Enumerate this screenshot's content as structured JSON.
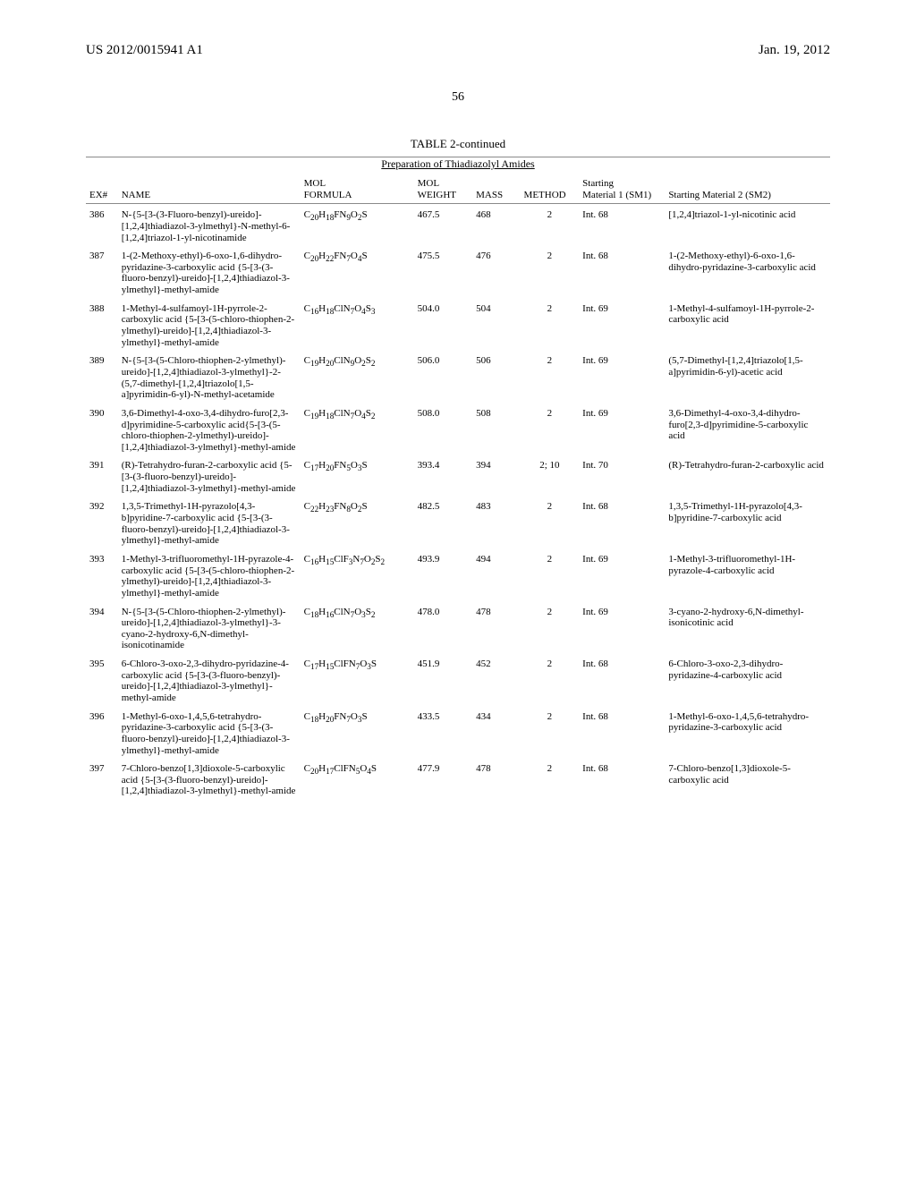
{
  "header": {
    "publication_number": "US 2012/0015941 A1",
    "publication_date": "Jan. 19, 2012",
    "page_number": "56"
  },
  "table": {
    "title": "TABLE 2-continued",
    "subtitle": "Preparation of Thiadiazolyl Amides",
    "columns": {
      "ex": "EX#",
      "name": "NAME",
      "mol_formula_l1": "MOL",
      "mol_formula_l2": "FORMULA",
      "mol_weight_l1": "MOL",
      "mol_weight_l2": "WEIGHT",
      "mass": "MASS",
      "method": "METHOD",
      "sm1_l1": "Starting",
      "sm1_l2": "Material 1 (SM1)",
      "sm2": "Starting Material 2 (SM2)"
    },
    "rows": [
      {
        "ex": "386",
        "name": "N-{5-[3-(3-Fluoro-benzyl)-ureido]-[1,2,4]thiadiazol-3-ylmethyl}-N-methyl-6-[1,2,4]triazol-1-yl-nicotinamide",
        "formula_html": "C<sub>20</sub>H<sub>18</sub>FN<sub>9</sub>O<sub>2</sub>S",
        "mw": "467.5",
        "mass": "468",
        "method": "2",
        "sm1": "Int. 68",
        "sm2": "[1,2,4]triazol-1-yl-nicotinic acid"
      },
      {
        "ex": "387",
        "name": "1-(2-Methoxy-ethyl)-6-oxo-1,6-dihydro-pyridazine-3-carboxylic acid {5-[3-(3-fluoro-benzyl)-ureido]-[1,2,4]thiadiazol-3-ylmethyl}-methyl-amide",
        "formula_html": "C<sub>20</sub>H<sub>22</sub>FN<sub>7</sub>O<sub>4</sub>S",
        "mw": "475.5",
        "mass": "476",
        "method": "2",
        "sm1": "Int. 68",
        "sm2": "1-(2-Methoxy-ethyl)-6-oxo-1,6-dihydro-pyridazine-3-carboxylic acid"
      },
      {
        "ex": "388",
        "name": "1-Methyl-4-sulfamoyl-1H-pyrrole-2-carboxylic acid {5-[3-(5-chloro-thiophen-2-ylmethyl)-ureido]-[1,2,4]thiadiazol-3-ylmethyl}-methyl-amide",
        "formula_html": "C<sub>16</sub>H<sub>18</sub>ClN<sub>7</sub>O<sub>4</sub>S<sub>3</sub>",
        "mw": "504.0",
        "mass": "504",
        "method": "2",
        "sm1": "Int. 69",
        "sm2": "1-Methyl-4-sulfamoyl-1H-pyrrole-2-carboxylic acid"
      },
      {
        "ex": "389",
        "name": "N-{5-[3-(5-Chloro-thiophen-2-ylmethyl)-ureido]-[1,2,4]thiadiazol-3-ylmethyl}-2-(5,7-dimethyl-[1,2,4]triazolo[1,5-a]pyrimidin-6-yl)-N-methyl-acetamide",
        "formula_html": "C<sub>19</sub>H<sub>20</sub>ClN<sub>9</sub>O<sub>2</sub>S<sub>2</sub>",
        "mw": "506.0",
        "mass": "506",
        "method": "2",
        "sm1": "Int. 69",
        "sm2": "(5,7-Dimethyl-[1,2,4]triazolo[1,5-a]pyrimidin-6-yl)-acetic acid"
      },
      {
        "ex": "390",
        "name": "3,6-Dimethyl-4-oxo-3,4-dihydro-furo[2,3-d]pyrimidine-5-carboxylic acid{5-[3-(5-chloro-thiophen-2-ylmethyl)-ureido]-[1,2,4]thiadiazol-3-ylmethyl}-methyl-amide",
        "formula_html": "C<sub>19</sub>H<sub>18</sub>ClN<sub>7</sub>O<sub>4</sub>S<sub>2</sub>",
        "mw": "508.0",
        "mass": "508",
        "method": "2",
        "sm1": "Int. 69",
        "sm2": "3,6-Dimethyl-4-oxo-3,4-dihydro-furo[2,3-d]pyrimidine-5-carboxylic acid"
      },
      {
        "ex": "391",
        "name": "(R)-Tetrahydro-furan-2-carboxylic acid {5-[3-(3-fluoro-benzyl)-ureido]-[1,2,4]thiadiazol-3-ylmethyl}-methyl-amide",
        "formula_html": "C<sub>17</sub>H<sub>20</sub>FN<sub>5</sub>O<sub>3</sub>S",
        "mw": "393.4",
        "mass": "394",
        "method": "2; 10",
        "sm1": "Int. 70",
        "sm2": "(R)-Tetrahydro-furan-2-carboxylic acid"
      },
      {
        "ex": "392",
        "name": "1,3,5-Trimethyl-1H-pyrazolo[4,3-b]pyridine-7-carboxylic acid {5-[3-(3-fluoro-benzyl)-ureido]-[1,2,4]thiadiazol-3-ylmethyl}-methyl-amide",
        "formula_html": "C<sub>22</sub>H<sub>23</sub>FN<sub>8</sub>O<sub>2</sub>S",
        "mw": "482.5",
        "mass": "483",
        "method": "2",
        "sm1": "Int. 68",
        "sm2": "1,3,5-Trimethyl-1H-pyrazolo[4,3-b]pyridine-7-carboxylic acid"
      },
      {
        "ex": "393",
        "name": "1-Methyl-3-trifluoromethyl-1H-pyrazole-4-carboxylic acid {5-[3-(5-chloro-thiophen-2-ylmethyl)-ureido]-[1,2,4]thiadiazol-3-ylmethyl}-methyl-amide",
        "formula_html": "C<sub>16</sub>H<sub>15</sub>ClF<sub>3</sub>N<sub>7</sub>O<sub>2</sub>S<sub>2</sub>",
        "mw": "493.9",
        "mass": "494",
        "method": "2",
        "sm1": "Int. 69",
        "sm2": "1-Methyl-3-trifluoromethyl-1H-pyrazole-4-carboxylic acid"
      },
      {
        "ex": "394",
        "name": "N-{5-[3-(5-Chloro-thiophen-2-ylmethyl)-ureido]-[1,2,4]thiadiazol-3-ylmethyl}-3-cyano-2-hydroxy-6,N-dimethyl-isonicotinamide",
        "formula_html": "C<sub>18</sub>H<sub>16</sub>ClN<sub>7</sub>O<sub>3</sub>S<sub>2</sub>",
        "mw": "478.0",
        "mass": "478",
        "method": "2",
        "sm1": "Int. 69",
        "sm2": "3-cyano-2-hydroxy-6,N-dimethyl-isonicotinic acid"
      },
      {
        "ex": "395",
        "name": "6-Chloro-3-oxo-2,3-dihydro-pyridazine-4-carboxylic acid {5-[3-(3-fluoro-benzyl)-ureido]-[1,2,4]thiadiazol-3-ylmethyl}-methyl-amide",
        "formula_html": "C<sub>17</sub>H<sub>15</sub>ClFN<sub>7</sub>O<sub>3</sub>S",
        "mw": "451.9",
        "mass": "452",
        "method": "2",
        "sm1": "Int. 68",
        "sm2": "6-Chloro-3-oxo-2,3-dihydro-pyridazine-4-carboxylic acid"
      },
      {
        "ex": "396",
        "name": "1-Methyl-6-oxo-1,4,5,6-tetrahydro-pyridazine-3-carboxylic acid {5-[3-(3-fluoro-benzyl)-ureido]-[1,2,4]thiadiazol-3-ylmethyl}-methyl-amide",
        "formula_html": "C<sub>18</sub>H<sub>20</sub>FN<sub>7</sub>O<sub>3</sub>S",
        "mw": "433.5",
        "mass": "434",
        "method": "2",
        "sm1": "Int. 68",
        "sm2": "1-Methyl-6-oxo-1,4,5,6-tetrahydro-pyridazine-3-carboxylic acid"
      },
      {
        "ex": "397",
        "name": "7-Chloro-benzo[1,3]dioxole-5-carboxylic acid {5-[3-(3-fluoro-benzyl)-ureido]-[1,2,4]thiadiazol-3-ylmethyl}-methyl-amide",
        "formula_html": "C<sub>20</sub>H<sub>17</sub>ClFN<sub>5</sub>O<sub>4</sub>S",
        "mw": "477.9",
        "mass": "478",
        "method": "2",
        "sm1": "Int. 68",
        "sm2": "7-Chloro-benzo[1,3]dioxole-5-carboxylic acid"
      }
    ]
  }
}
